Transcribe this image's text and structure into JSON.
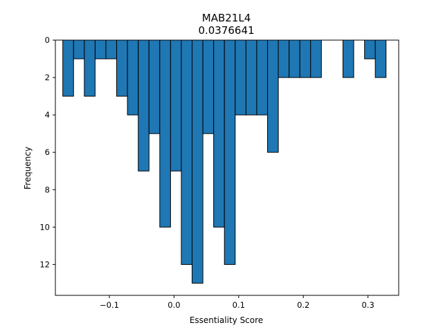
{
  "chart_data": {
    "type": "bar",
    "title": "MAB21L4",
    "subtitle": "0.0376641",
    "xlabel": "Essentiality Score",
    "ylabel": "Frequency",
    "bin_width": 0.01667,
    "xlim": [
      -0.1835,
      0.3475
    ],
    "ylim": [
      0,
      13.65
    ],
    "y_inverted": true,
    "bar_color": "#1f77b4",
    "edge_color": "#000000",
    "xticks": [
      -0.1,
      0.0,
      0.1,
      0.2,
      0.3
    ],
    "xtick_labels": [
      "−0.1",
      "0.0",
      "0.1",
      "0.2",
      "0.3"
    ],
    "yticks": [
      0,
      2,
      4,
      6,
      8,
      10,
      12
    ],
    "ytick_labels": [
      "0",
      "2",
      "4",
      "6",
      "8",
      "10",
      "12"
    ],
    "bins": [
      {
        "x": -0.1637,
        "count": 3
      },
      {
        "x": -0.147,
        "count": 1
      },
      {
        "x": -0.1304,
        "count": 3
      },
      {
        "x": -0.1137,
        "count": 1
      },
      {
        "x": -0.097,
        "count": 1
      },
      {
        "x": -0.0804,
        "count": 3
      },
      {
        "x": -0.0637,
        "count": 4
      },
      {
        "x": -0.047,
        "count": 7
      },
      {
        "x": -0.0304,
        "count": 5
      },
      {
        "x": -0.0137,
        "count": 10
      },
      {
        "x": 0.003,
        "count": 7
      },
      {
        "x": 0.0196,
        "count": 12
      },
      {
        "x": 0.0363,
        "count": 13
      },
      {
        "x": 0.053,
        "count": 5
      },
      {
        "x": 0.0696,
        "count": 10
      },
      {
        "x": 0.0863,
        "count": 12
      },
      {
        "x": 0.103,
        "count": 4
      },
      {
        "x": 0.1196,
        "count": 4
      },
      {
        "x": 0.1363,
        "count": 4
      },
      {
        "x": 0.153,
        "count": 6
      },
      {
        "x": 0.1696,
        "count": 2
      },
      {
        "x": 0.1863,
        "count": 2
      },
      {
        "x": 0.203,
        "count": 2
      },
      {
        "x": 0.2196,
        "count": 2
      },
      {
        "x": 0.2363,
        "count": 0
      },
      {
        "x": 0.253,
        "count": 0
      },
      {
        "x": 0.2696,
        "count": 2
      },
      {
        "x": 0.2863,
        "count": 0
      },
      {
        "x": 0.303,
        "count": 1
      },
      {
        "x": 0.3196,
        "count": 2
      }
    ]
  }
}
